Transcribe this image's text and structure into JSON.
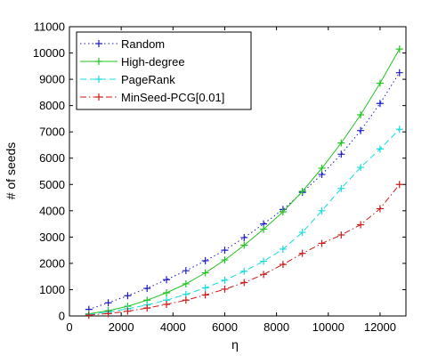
{
  "chart_data": {
    "type": "line",
    "xlabel": "η",
    "ylabel": "# of seeds",
    "xlim": [
      0,
      13000
    ],
    "ylim": [
      0,
      11000
    ],
    "xticks": [
      0,
      2000,
      4000,
      6000,
      8000,
      10000,
      12000
    ],
    "yticks": [
      0,
      1000,
      2000,
      3000,
      4000,
      5000,
      6000,
      7000,
      8000,
      9000,
      10000,
      11000
    ],
    "grid": false,
    "legend_position": "top-left",
    "x": [
      750,
      1500,
      2250,
      3000,
      3750,
      4500,
      5250,
      6000,
      6750,
      7500,
      8250,
      9000,
      9750,
      10500,
      11250,
      12000,
      12750
    ],
    "series": [
      {
        "name": "Random",
        "color": "#1c1cc8",
        "line_style": "dotted",
        "marker": "+",
        "values": [
          250,
          500,
          770,
          1050,
          1380,
          1720,
          2100,
          2500,
          2980,
          3500,
          4050,
          4700,
          5380,
          6150,
          7050,
          8080,
          9250
        ]
      },
      {
        "name": "High-degree",
        "color": "#22c422",
        "line_style": "solid",
        "marker": "+",
        "values": [
          80,
          200,
          370,
          600,
          880,
          1220,
          1640,
          2130,
          2690,
          3300,
          3960,
          4740,
          5620,
          6580,
          7650,
          8850,
          10150
        ]
      },
      {
        "name": "PageRank",
        "color": "#18dcdc",
        "line_style": "dashed",
        "marker": "+",
        "values": [
          60,
          150,
          270,
          420,
          600,
          820,
          1070,
          1360,
          1700,
          2080,
          2540,
          3180,
          4000,
          4850,
          5650,
          6350,
          7100
        ]
      },
      {
        "name": "MinSeed-PCG[0.01]",
        "color": "#cc1c1c",
        "line_style": "dashdot",
        "marker": "+",
        "values": [
          30,
          90,
          180,
          300,
          440,
          600,
          800,
          1020,
          1270,
          1580,
          1960,
          2380,
          2760,
          3080,
          3470,
          4080,
          5000
        ]
      }
    ]
  }
}
